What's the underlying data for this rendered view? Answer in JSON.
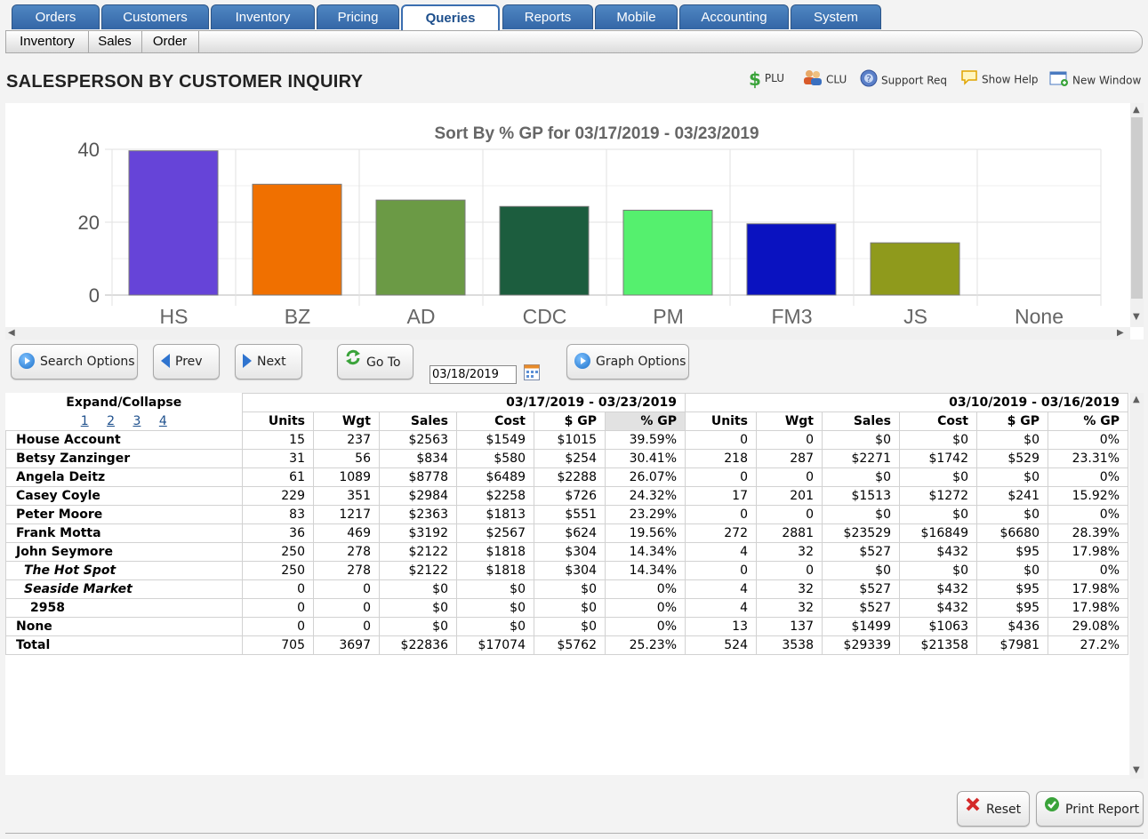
{
  "tabs": [
    "Orders",
    "Customers",
    "Inventory",
    "Pricing",
    "Queries",
    "Reports",
    "Mobile",
    "Accounting",
    "System"
  ],
  "active_tab": "Queries",
  "subtabs": [
    "Inventory",
    "Sales",
    "Order"
  ],
  "page_title": "SALESPERSON BY CUSTOMER INQUIRY",
  "toolbar": {
    "plu": "PLU",
    "clu": "CLU",
    "support": "Support Req",
    "help": "Show Help",
    "new_window": "New Window"
  },
  "chart_data": {
    "type": "bar",
    "title": "Sort By % GP for 03/17/2019 - 03/23/2019",
    "categories": [
      "HS",
      "BZ",
      "AD",
      "CDC",
      "PM",
      "FM3",
      "JS",
      "None"
    ],
    "values": [
      39.59,
      30.41,
      26.07,
      24.32,
      23.29,
      19.56,
      14.34,
      0
    ],
    "colors": [
      "#6644d8",
      "#f07000",
      "#6b9a45",
      "#1c5d3e",
      "#55f06e",
      "#0a12c0",
      "#8f9a1c",
      "#cccccc"
    ],
    "yticks": [
      0,
      20,
      40
    ],
    "ylim": [
      0,
      40
    ],
    "grid": true
  },
  "buttons": {
    "search": "Search Options",
    "prev": "Prev",
    "next": "Next",
    "goto": "Go To",
    "graph": "Graph Options",
    "reset": "Reset",
    "print": "Print Report"
  },
  "date_value": "03/18/2019",
  "table": {
    "expand_label": "Expand/Collapse",
    "levels": [
      "1",
      "2",
      "3",
      "4"
    ],
    "period1": "03/17/2019 - 03/23/2019",
    "period2": "03/10/2019 - 03/16/2019",
    "columns": [
      "Units",
      "Wgt",
      "Sales",
      "Cost",
      "$ GP",
      "% GP"
    ],
    "rows": [
      {
        "name": "House Account",
        "style": "bold",
        "p1": [
          "15",
          "237",
          "$2563",
          "$1549",
          "$1015",
          "39.59%"
        ],
        "p2": [
          "0",
          "0",
          "$0",
          "$0",
          "$0",
          "0%"
        ]
      },
      {
        "name": "Betsy Zanzinger",
        "style": "bold",
        "p1": [
          "31",
          "56",
          "$834",
          "$580",
          "$254",
          "30.41%"
        ],
        "p2": [
          "218",
          "287",
          "$2271",
          "$1742",
          "$529",
          "23.31%"
        ]
      },
      {
        "name": "Angela Deitz",
        "style": "bold",
        "p1": [
          "61",
          "1089",
          "$8778",
          "$6489",
          "$2288",
          "26.07%"
        ],
        "p2": [
          "0",
          "0",
          "$0",
          "$0",
          "$0",
          "0%"
        ]
      },
      {
        "name": "Casey Coyle",
        "style": "bold",
        "p1": [
          "229",
          "351",
          "$2984",
          "$2258",
          "$726",
          "24.32%"
        ],
        "p2": [
          "17",
          "201",
          "$1513",
          "$1272",
          "$241",
          "15.92%"
        ]
      },
      {
        "name": "Peter Moore",
        "style": "bold",
        "p1": [
          "83",
          "1217",
          "$2363",
          "$1813",
          "$551",
          "23.29%"
        ],
        "p2": [
          "0",
          "0",
          "$0",
          "$0",
          "$0",
          "0%"
        ]
      },
      {
        "name": "Frank Motta",
        "style": "bold",
        "p1": [
          "36",
          "469",
          "$3192",
          "$2567",
          "$624",
          "19.56%"
        ],
        "p2": [
          "272",
          "2881",
          "$23529",
          "$16849",
          "$6680",
          "28.39%"
        ]
      },
      {
        "name": "John Seymore",
        "style": "bold",
        "p1": [
          "250",
          "278",
          "$2122",
          "$1818",
          "$304",
          "14.34%"
        ],
        "p2": [
          "4",
          "32",
          "$527",
          "$432",
          "$95",
          "17.98%"
        ]
      },
      {
        "name": "The Hot Spot",
        "style": "italic",
        "p1": [
          "250",
          "278",
          "$2122",
          "$1818",
          "$304",
          "14.34%"
        ],
        "p2": [
          "0",
          "0",
          "$0",
          "$0",
          "$0",
          "0%"
        ]
      },
      {
        "name": "Seaside Market",
        "style": "italic",
        "p1": [
          "0",
          "0",
          "$0",
          "$0",
          "$0",
          "0%"
        ],
        "p2": [
          "4",
          "32",
          "$527",
          "$432",
          "$95",
          "17.98%"
        ]
      },
      {
        "name": "2958",
        "style": "sub",
        "p1": [
          "0",
          "0",
          "$0",
          "$0",
          "$0",
          "0%"
        ],
        "p2": [
          "4",
          "32",
          "$527",
          "$432",
          "$95",
          "17.98%"
        ]
      },
      {
        "name": "None",
        "style": "bold",
        "p1": [
          "0",
          "0",
          "$0",
          "$0",
          "$0",
          "0%"
        ],
        "p2": [
          "13",
          "137",
          "$1499",
          "$1063",
          "$436",
          "29.08%"
        ]
      },
      {
        "name": "Total",
        "style": "bold",
        "p1": [
          "705",
          "3697",
          "$22836",
          "$17074",
          "$5762",
          "25.23%"
        ],
        "p2": [
          "524",
          "3538",
          "$29339",
          "$21358",
          "$7981",
          "27.2%"
        ]
      }
    ]
  }
}
